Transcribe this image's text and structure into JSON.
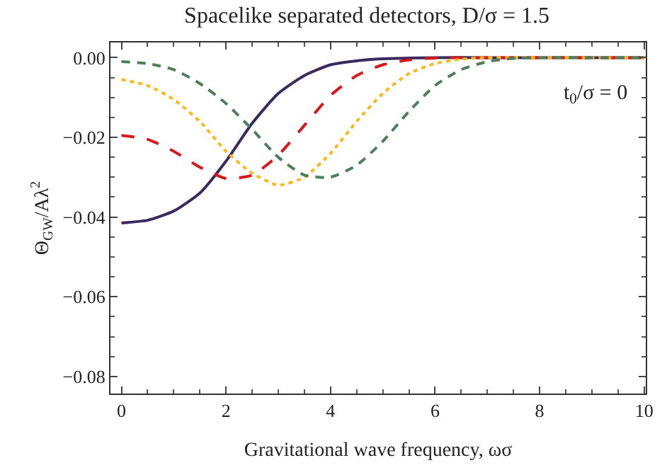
{
  "chart_data": {
    "type": "line",
    "title": "Spacelike separated detectors, D/σ = 1.5",
    "xlabel": "Gravitational wave frequency, ωσ",
    "ylabel": "Θ$_{GW}$/Aλ$^{2}$",
    "annotations": [
      "t$_{0}$/σ = 0"
    ],
    "xlim": [
      -0.21,
      10.03
    ],
    "ylim": [
      -0.0843,
      0.0038
    ],
    "xticks": [
      0,
      2,
      4,
      6,
      8,
      10
    ],
    "yticks": [
      {
        "value": -0.08,
        "label": "−0.08"
      },
      {
        "value": -0.06,
        "label": "−0.06"
      },
      {
        "value": -0.04,
        "label": "−0.04"
      },
      {
        "value": -0.02,
        "label": "−0.02"
      },
      {
        "value": 0,
        "label": "0.00"
      }
    ],
    "marker": "none",
    "series": [
      {
        "color": "#3b2a5e",
        "line_style": "solid",
        "x": [
          0,
          0.5,
          1,
          1.5,
          2,
          2.5,
          3,
          3.5,
          4,
          4.5,
          5,
          5.5,
          6,
          7,
          8,
          9,
          10
        ],
        "values": [
          -0.0415,
          -0.0408,
          -0.0385,
          -0.034,
          -0.026,
          -0.0165,
          -0.009,
          -0.0045,
          -0.0018,
          -0.0008,
          -0.0003,
          -0.0001,
          0,
          0,
          0,
          0,
          0
        ]
      },
      {
        "color": "#d7191c",
        "line_style": "dashed",
        "x": [
          0,
          0.5,
          1,
          1.5,
          2,
          2.5,
          3,
          3.5,
          4,
          4.5,
          5,
          5.5,
          6,
          6.5,
          7,
          8,
          9,
          10
        ],
        "values": [
          -0.0195,
          -0.0205,
          -0.0235,
          -0.0275,
          -0.0303,
          -0.0295,
          -0.0245,
          -0.017,
          -0.0095,
          -0.0045,
          -0.0018,
          -0.0006,
          -0.0001,
          0,
          0,
          0,
          0,
          0
        ]
      },
      {
        "color": "#ffb81c",
        "line_style": "dotted",
        "x": [
          0,
          0.5,
          1,
          1.5,
          2,
          2.5,
          3,
          3.5,
          4,
          4.5,
          5,
          5.5,
          6,
          6.5,
          7,
          8,
          9,
          10
        ],
        "values": [
          -0.0055,
          -0.007,
          -0.0105,
          -0.016,
          -0.0235,
          -0.029,
          -0.032,
          -0.03,
          -0.024,
          -0.016,
          -0.009,
          -0.004,
          -0.0015,
          -0.0004,
          0,
          0,
          0,
          0
        ]
      },
      {
        "color": "#4f7f5a",
        "line_style": "dashed",
        "x": [
          0,
          0.5,
          1,
          1.5,
          2,
          2.5,
          3,
          3.5,
          4,
          4.5,
          5,
          5.5,
          6,
          6.5,
          7,
          7.5,
          8,
          9,
          10
        ],
        "values": [
          -0.001,
          -0.0015,
          -0.003,
          -0.0065,
          -0.0115,
          -0.018,
          -0.025,
          -0.0295,
          -0.03,
          -0.027,
          -0.021,
          -0.0135,
          -0.007,
          -0.003,
          -0.001,
          -0.0002,
          0,
          0,
          0
        ]
      }
    ]
  }
}
